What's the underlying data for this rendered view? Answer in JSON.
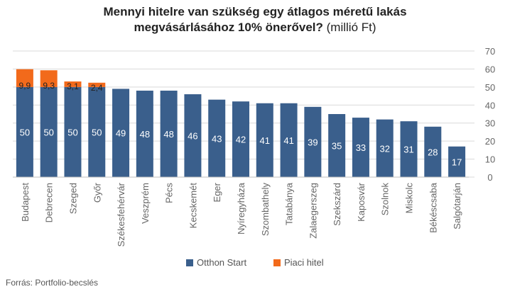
{
  "title_line1": "Mennyi hitelre van szükség egy átlagos méretű lakás",
  "title_line2_bold": "megvásárlásához 10% önerővel?",
  "title_line2_rest": " (millió Ft)",
  "source": "Forrás: Portfolio-becslés",
  "chart_data": {
    "type": "bar",
    "stacked": true,
    "title": "Mennyi hitelre van szükség egy átlagos méretű lakás megvásárlásához 10% önerővel? (millió Ft)",
    "categories": [
      "Budapest",
      "Debrecen",
      "Szeged",
      "Győr",
      "Székesfehérvár",
      "Veszprém",
      "Pécs",
      "Kecskemét",
      "Eger",
      "Nyíregyháza",
      "Szombathely",
      "Tatabánya",
      "Zalaegerszeg",
      "Szekszárd",
      "Kaposvár",
      "Szolnok",
      "Miskolc",
      "Békéscsaba",
      "Salgótarján"
    ],
    "series": [
      {
        "name": "Otthon Start",
        "color": "#3a5f8c",
        "values": [
          50,
          50,
          50,
          50,
          49,
          48,
          48,
          46,
          43,
          42,
          41,
          41,
          39,
          35,
          33,
          32,
          31,
          28,
          17
        ],
        "labels": [
          "50",
          "50",
          "50",
          "50",
          "49",
          "48",
          "48",
          "46",
          "43",
          "42",
          "41",
          "41",
          "39",
          "35",
          "33",
          "32",
          "31",
          "28",
          "17"
        ]
      },
      {
        "name": "Piaci hitel",
        "color": "#f26a1b",
        "values": [
          9.9,
          9.3,
          3.1,
          2.4,
          0,
          0,
          0,
          0,
          0,
          0,
          0,
          0,
          0,
          0,
          0,
          0,
          0,
          0,
          0
        ],
        "labels": [
          "9,9",
          "9,3",
          "3,1",
          "2,4",
          "",
          "",
          "",
          "",
          "",
          "",
          "",
          "",
          "",
          "",
          "",
          "",
          "",
          "",
          ""
        ]
      }
    ],
    "y_ticks": [
      "0",
      "10",
      "20",
      "30",
      "40",
      "50",
      "60",
      "70"
    ],
    "ylim": [
      0,
      70
    ],
    "y_axis_side": "right",
    "grid": true,
    "legend_position": "bottom"
  }
}
